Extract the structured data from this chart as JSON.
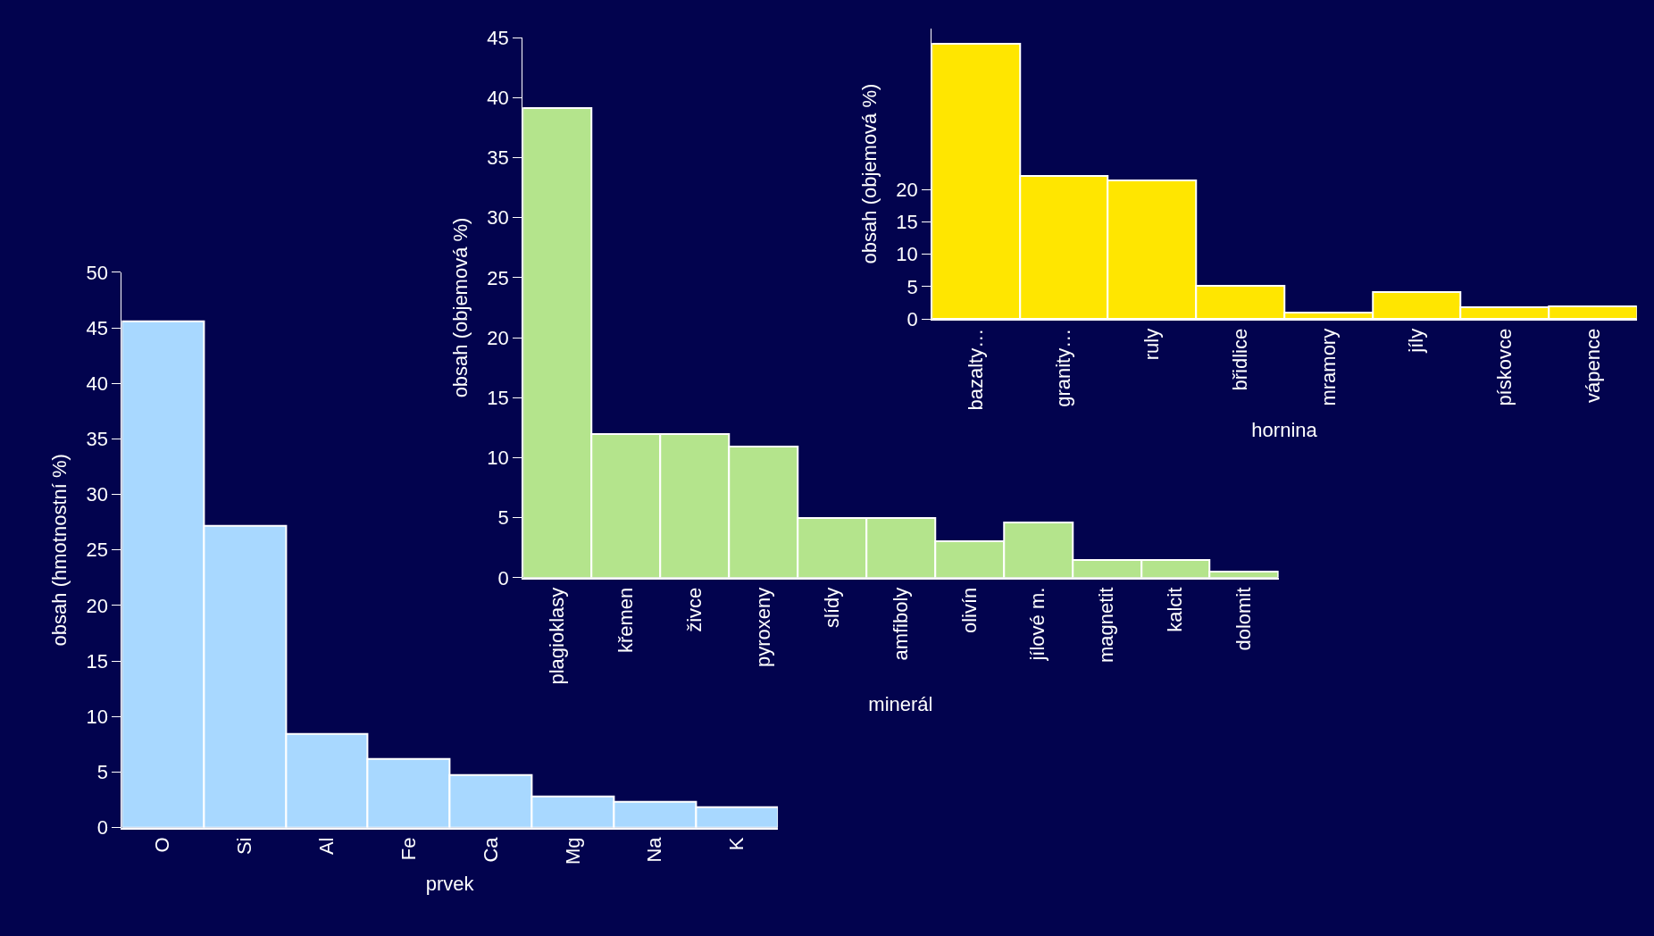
{
  "chart_data": [
    {
      "type": "bar",
      "xlabel": "prvek",
      "ylabel": "obsah (hmotnostní %)",
      "categories": [
        "O",
        "Si",
        "Al",
        "Fe",
        "Ca",
        "Mg",
        "Na",
        "K"
      ],
      "values": [
        45.6,
        27.2,
        8.4,
        6.2,
        4.7,
        2.8,
        2.3,
        1.8
      ],
      "color": "#a8d8ff",
      "ylim": [
        0,
        50
      ],
      "yticks": [
        0,
        5,
        10,
        15,
        20,
        25,
        30,
        35,
        40,
        45,
        50
      ],
      "grid": false
    },
    {
      "type": "bar",
      "xlabel": "minerál",
      "ylabel": "obsah (objemová %)",
      "categories": [
        "plagioklasy",
        "křemen",
        "živce",
        "pyroxeny",
        "slídy",
        "amfiboly",
        "olivín",
        "jílové m.",
        "magnetit",
        "kalcit",
        "dolomit"
      ],
      "values": [
        39.1,
        12.0,
        12.0,
        10.9,
        5.0,
        5.0,
        3.0,
        4.6,
        1.5,
        1.5,
        0.5
      ],
      "color": "#b4e48c",
      "ylim": [
        0,
        45
      ],
      "yticks": [
        0,
        5,
        10,
        15,
        20,
        25,
        30,
        35,
        40,
        45
      ],
      "grid": false
    },
    {
      "type": "bar",
      "xlabel": "hornina",
      "ylabel": "obsah (objemová %)",
      "categories": [
        "bazalty…",
        "granity…",
        "ruly",
        "břidlice",
        "mramory",
        "jíly",
        "pískovce",
        "vápence"
      ],
      "values": [
        42.6,
        22.1,
        21.4,
        5.1,
        0.9,
        4.2,
        1.8,
        2.0
      ],
      "color": "#ffe600",
      "ylim": [
        0,
        45
      ],
      "yticks": [
        0,
        5,
        10,
        15,
        20
      ],
      "grid": false
    }
  ]
}
